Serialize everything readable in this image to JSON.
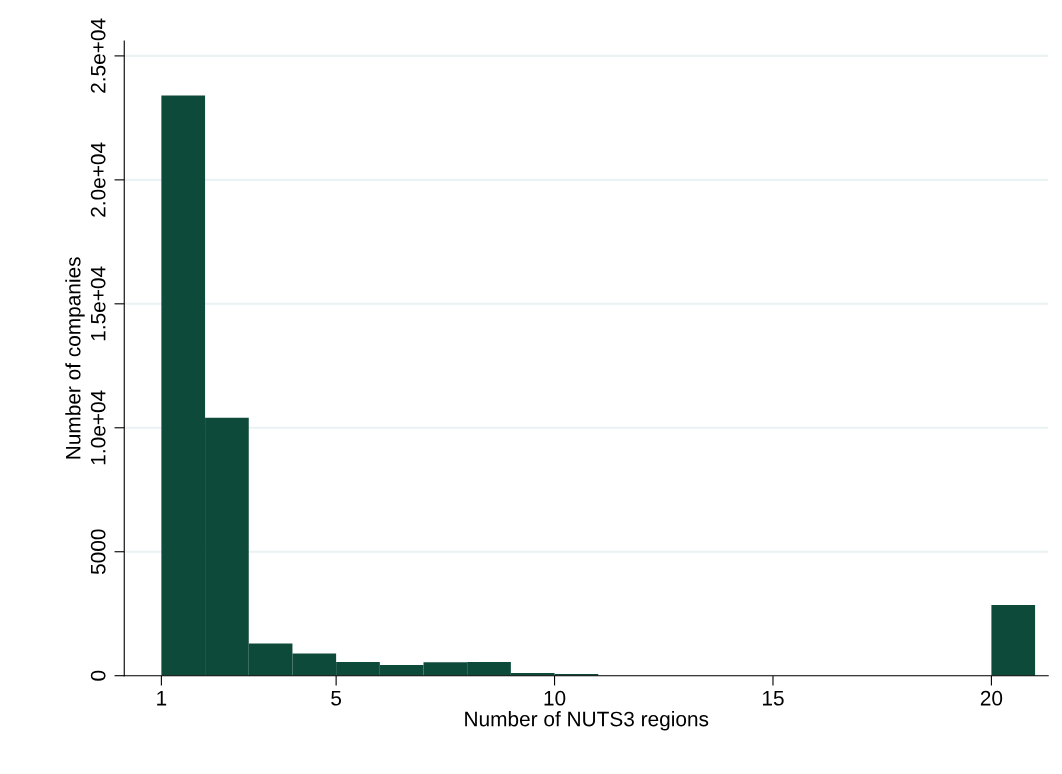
{
  "chart_data": {
    "type": "histogram",
    "xlabel": "Number of NUTS3 regions",
    "ylabel": "Number of companies",
    "bins": [
      1,
      2,
      3,
      4,
      5,
      6,
      7,
      8,
      9,
      10,
      11,
      12,
      13,
      14,
      15,
      16,
      17,
      18,
      19,
      20,
      21
    ],
    "values": [
      23400,
      10400,
      1300,
      900,
      550,
      430,
      540,
      550,
      110,
      70,
      null,
      null,
      null,
      null,
      null,
      null,
      null,
      null,
      null,
      2850
    ],
    "color": "#0e4a3a",
    "xlim": [
      0.15,
      21.3
    ],
    "xticks": [
      1,
      5,
      10,
      15,
      20
    ],
    "ylim": [
      0,
      25600
    ],
    "yticks": [
      0,
      5000,
      {
        "value": 10000,
        "label": "1.0e+04"
      },
      {
        "value": 15000,
        "label": "1.5e+04"
      },
      {
        "value": 20000,
        "label": "2.0e+04"
      },
      {
        "value": 25000,
        "label": "2.5e+04"
      }
    ],
    "grid": "y"
  }
}
